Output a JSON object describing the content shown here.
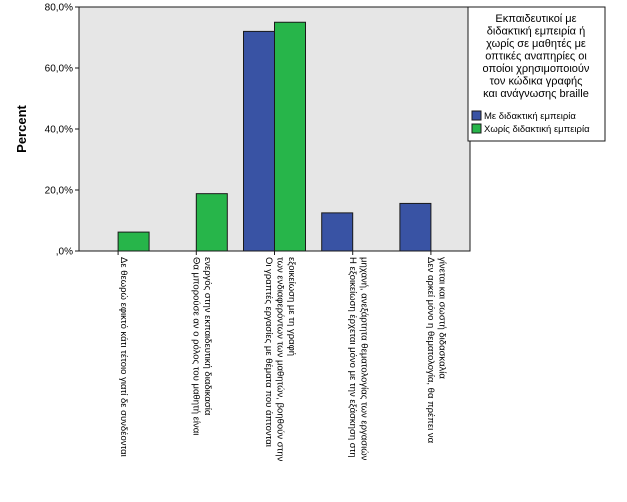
{
  "chart_data": {
    "type": "bar",
    "ylabel": "Percent",
    "ylim": [
      0,
      80
    ],
    "yticks": [
      0,
      20,
      40,
      60,
      80
    ],
    "ytick_labels": [
      ",0%",
      "20,0%",
      "40,0%",
      "60,0%",
      "80,0%"
    ],
    "grid": false,
    "legend_position": "right",
    "legend_title": [
      "Εκπαιδευτικοί με",
      "διδακτική εμπειρία ή",
      "χωρίς σε μαθητές με",
      "οπτικές αναπηρίες οι",
      "οποίοι χρησιμοποιούν",
      "τον κώδικα γραφής",
      "και ανάγνωσης braille"
    ],
    "categories": [
      [
        "Δε θεωρώ εφικτό κάτι τέτοιο γιατί δε συνδέονται"
      ],
      [
        "Θα μπορούσε αν ο ρόλος του μαθητή είναι",
        "ενεργός στην εκπαιδευτική διαδικασία"
      ],
      [
        "Οι γραπτές εργασίες με θέματα που άπτονται",
        "των ενδιαφερόντων των μαθητών, βοηθούν στην",
        "εξοικείωση με τη γραφή"
      ],
      [
        "Η εξοικείωση έρχεται μόνο με την εξάσκηση στη",
        "μηχανή, ανεξάρτητα θεματολογίας των εργασιών"
      ],
      [
        "Δεν αρκεί μόνο η θεματολογία, θα πρέπει να",
        "γίνεται και σωστή διδασκαλία"
      ]
    ],
    "series": [
      {
        "name": "Με διδακτική εμπειρία",
        "color": "#3953a4",
        "values": [
          0,
          0,
          72,
          12.5,
          15.6
        ]
      },
      {
        "name": "Χωρίς διδακτική εμπειρία",
        "color": "#27b54a",
        "values": [
          6.2,
          18.8,
          75,
          0,
          0
        ]
      }
    ]
  },
  "colors": {
    "plot_background": "#e6e6e6",
    "bar_outline": "#1a1a1a"
  }
}
